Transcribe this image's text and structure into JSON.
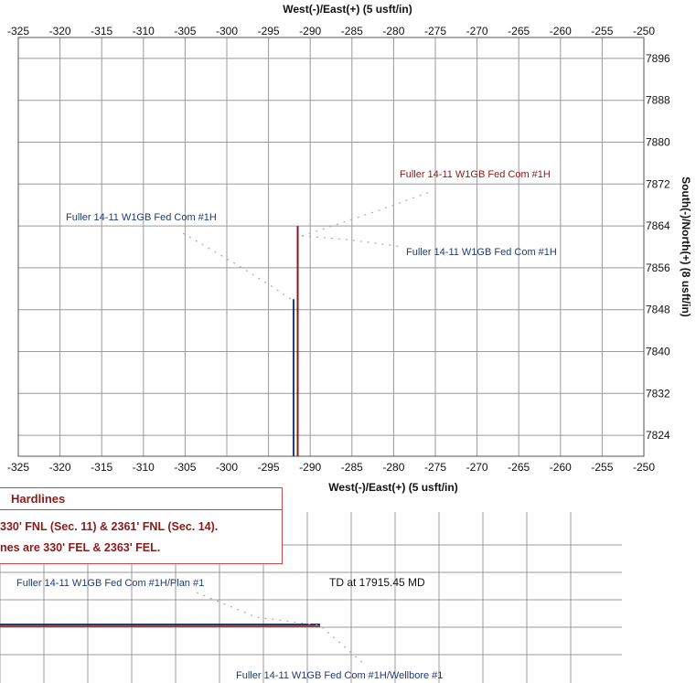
{
  "chart_data": [
    {
      "type": "line",
      "title": "",
      "xlabel_top": "West(-)/East(+) (5 usft/in)",
      "xlabel_bottom": "West(-)/East(+) (5 usft/in)",
      "ylabel": "South(-)/North(+) (8 usft/in)",
      "xlim": [
        -325,
        -250
      ],
      "ylim": [
        7820,
        7900
      ],
      "x_ticks": [
        -325,
        -320,
        -315,
        -310,
        -305,
        -300,
        -295,
        -290,
        -285,
        -280,
        -275,
        -270,
        -265,
        -260,
        -255,
        -250
      ],
      "y_ticks": [
        7824,
        7832,
        7840,
        7848,
        7856,
        7864,
        7872,
        7880,
        7888,
        7896
      ],
      "grid": true,
      "series": [
        {
          "color": "#1f3a75",
          "points": [
            [
              -292,
              7820
            ],
            [
              -292,
              7850
            ]
          ]
        },
        {
          "color": "#8b1a1a",
          "points": [
            [
              -291.5,
              7820
            ],
            [
              -291.5,
              7864
            ]
          ]
        }
      ],
      "annotations": [
        {
          "text": "Fuller 14-11 W1GB Fed Com #1H",
          "color": "#8b1a1a"
        },
        {
          "text": "Fuller 14-11 W1GB Fed Com #1H",
          "color": "#1f3a75"
        },
        {
          "text": "Fuller 14-11 W1GB Fed Com #1H",
          "color": "#1f3a75"
        }
      ]
    }
  ],
  "hardlines": {
    "title": "Hardlines",
    "line1": "330' FNL (Sec. 11) & 2361' FNL (Sec. 14).",
    "line2": "nes are 330' FEL & 2363' FEL."
  },
  "lower_plot": {
    "plan_label": "Fuller 14-11 W1GB Fed Com #1H/Plan #1",
    "td_label": "TD at 17915.45 MD",
    "wellbore_label": "Fuller 14-11 W1GB Fed Com #1H/Wellbore #1"
  },
  "colors": {
    "plan": "#8b1a1a",
    "wellbore": "#1f3a75",
    "grid": "#9a9a9a",
    "hardline": "#c84a4a"
  }
}
